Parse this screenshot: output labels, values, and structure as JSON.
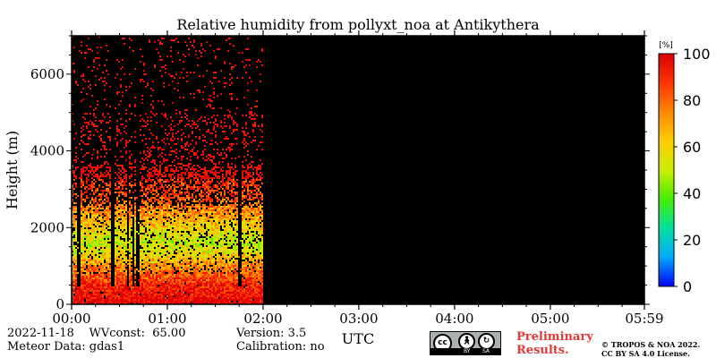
{
  "chart_data": {
    "type": "heatmap",
    "title": "Relative humidity from pollyxt_noa at Antikythera",
    "ylabel": "Height (m)",
    "xlabel": "UTC",
    "x_ticks": [
      "00:00",
      "01:00",
      "02:00",
      "03:00",
      "04:00",
      "05:00",
      "05:59"
    ],
    "y_ticks": [
      0,
      2000,
      4000,
      6000
    ],
    "ylim": [
      0,
      7000
    ],
    "xlim_hours": [
      0,
      5.983
    ],
    "data_end_hours": 2.0,
    "colorbar": {
      "unit": "[%]",
      "ticks": [
        0,
        20,
        40,
        60,
        80,
        100
      ],
      "range": [
        0,
        100
      ],
      "colors": [
        "#0000ff",
        "#00aaff",
        "#00e0a0",
        "#44ee00",
        "#ccee00",
        "#ffcc00",
        "#ff8800",
        "#ff3300",
        "#dd0000"
      ]
    },
    "humidity_profile": [
      {
        "height": 100,
        "rh": 100
      },
      {
        "height": 400,
        "rh": 95
      },
      {
        "height": 700,
        "rh": 85
      },
      {
        "height": 1000,
        "rh": 75
      },
      {
        "height": 1300,
        "rh": 60
      },
      {
        "height": 1600,
        "rh": 50
      },
      {
        "height": 2000,
        "rh": 60
      },
      {
        "height": 2400,
        "rh": 72
      },
      {
        "height": 2800,
        "rh": 85
      },
      {
        "height": 3500,
        "rh": 95
      },
      {
        "height": 6500,
        "rh": 100
      }
    ],
    "colors": {
      "no_data": "#000000",
      "background": "#ffffff"
    }
  },
  "footer": {
    "date_line": "2022-11-18    WVconst:  65.00",
    "meteor_line": "Meteor Data: gdas1",
    "version_line": "Version: 3.5",
    "calibration_line": "Calibration: no",
    "preliminary_line1": "Preliminary",
    "preliminary_line2": "Results.",
    "copyright_line1": "© TROPOS & NOA 2022.",
    "copyright_line2": "CC BY SA 4.0 License."
  },
  "license_badge": {
    "icon": "cc-by-sa-icon",
    "label_by": "BY",
    "label_sa": "SA"
  }
}
